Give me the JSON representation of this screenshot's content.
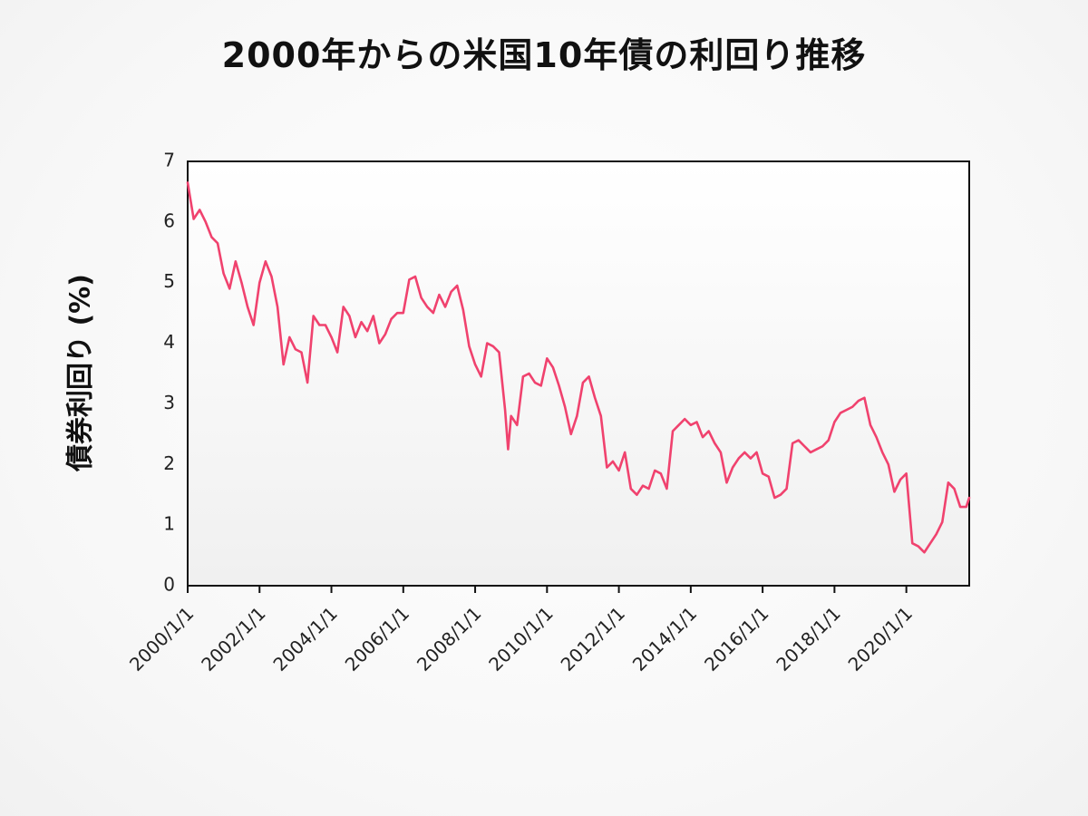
{
  "chart_data": {
    "type": "line",
    "title": "2000年からの米国10年債の利回り推移",
    "xlabel": "",
    "ylabel": "債券利回り (%)",
    "xlim": [
      "2000/1/1",
      "2021/10/1"
    ],
    "ylim": [
      0,
      7
    ],
    "yticks": [
      "0",
      "1",
      "2",
      "3",
      "4",
      "5",
      "6",
      "7"
    ],
    "xticks": [
      {
        "label": "2000/1/1",
        "date": "2000/1/1"
      },
      {
        "label": "2002/1/1",
        "date": "2002/1/1"
      },
      {
        "label": "2004/1/1",
        "date": "2004/1/1"
      },
      {
        "label": "2006/1/1",
        "date": "2006/1/1"
      },
      {
        "label": "2008/1/1",
        "date": "2008/1/1"
      },
      {
        "label": "2010/1/1",
        "date": "2010/1/1"
      },
      {
        "label": "2012/1/1",
        "date": "2012/1/1"
      },
      {
        "label": "2014/1/1",
        "date": "2014/1/1"
      },
      {
        "label": "2016/1/1",
        "date": "2016/1/1"
      },
      {
        "label": "2018/1/1",
        "date": "2018/1/1"
      },
      {
        "label": "2020/1/1",
        "date": "2020/1/1"
      }
    ],
    "grid": false,
    "line_color": "#f0426e",
    "series": [
      {
        "x": [
          "2000/1",
          "2000/3",
          "2000/5",
          "2000/7",
          "2000/9",
          "2000/11",
          "2001/1",
          "2001/3",
          "2001/5",
          "2001/7",
          "2001/9",
          "2001/11",
          "2002/1",
          "2002/3",
          "2002/5",
          "2002/7",
          "2002/9",
          "2002/11",
          "2003/1",
          "2003/3",
          "2003/5",
          "2003/7",
          "2003/9",
          "2003/11",
          "2004/1",
          "2004/3",
          "2004/5",
          "2004/7",
          "2004/9",
          "2004/11",
          "2005/1",
          "2005/3",
          "2005/5",
          "2005/7",
          "2005/9",
          "2005/11",
          "2006/1",
          "2006/3",
          "2006/5",
          "2006/7",
          "2006/9",
          "2006/11",
          "2007/1",
          "2007/3",
          "2007/5",
          "2007/7",
          "2007/9",
          "2007/11",
          "2008/1",
          "2008/3",
          "2008/5",
          "2008/7",
          "2008/9",
          "2008/11",
          "2008/12",
          "2009/1",
          "2009/3",
          "2009/5",
          "2009/7",
          "2009/9",
          "2009/11",
          "2010/1",
          "2010/3",
          "2010/5",
          "2010/7",
          "2010/9",
          "2010/11",
          "2011/1",
          "2011/3",
          "2011/5",
          "2011/7",
          "2011/9",
          "2011/11",
          "2012/1",
          "2012/3",
          "2012/5",
          "2012/7",
          "2012/9",
          "2012/11",
          "2013/1",
          "2013/3",
          "2013/5",
          "2013/7",
          "2013/9",
          "2013/11",
          "2014/1",
          "2014/3",
          "2014/5",
          "2014/7",
          "2014/9",
          "2014/11",
          "2015/1",
          "2015/3",
          "2015/5",
          "2015/7",
          "2015/9",
          "2015/11",
          "2016/1",
          "2016/3",
          "2016/5",
          "2016/7",
          "2016/9",
          "2016/11",
          "2017/1",
          "2017/3",
          "2017/5",
          "2017/7",
          "2017/9",
          "2017/11",
          "2018/1",
          "2018/3",
          "2018/5",
          "2018/7",
          "2018/9",
          "2018/11",
          "2019/1",
          "2019/3",
          "2019/5",
          "2019/7",
          "2019/9",
          "2019/11",
          "2020/1",
          "2020/3",
          "2020/5",
          "2020/7",
          "2020/9",
          "2020/11",
          "2021/1",
          "2021/3",
          "2021/5",
          "2021/7",
          "2021/9",
          "2021/10"
        ],
        "values": [
          6.65,
          6.05,
          6.2,
          6.0,
          5.75,
          5.65,
          5.15,
          4.9,
          5.35,
          5.0,
          4.6,
          4.3,
          5.0,
          5.35,
          5.1,
          4.6,
          3.65,
          4.1,
          3.9,
          3.85,
          3.35,
          4.45,
          4.3,
          4.3,
          4.1,
          3.85,
          4.6,
          4.45,
          4.1,
          4.35,
          4.2,
          4.45,
          4.0,
          4.15,
          4.4,
          4.5,
          4.5,
          5.05,
          5.1,
          4.75,
          4.6,
          4.5,
          4.8,
          4.6,
          4.85,
          4.95,
          4.55,
          3.95,
          3.65,
          3.45,
          4.0,
          3.95,
          3.85,
          2.9,
          2.25,
          2.8,
          2.65,
          3.45,
          3.5,
          3.35,
          3.3,
          3.75,
          3.6,
          3.3,
          2.95,
          2.5,
          2.8,
          3.35,
          3.45,
          3.1,
          2.8,
          1.95,
          2.05,
          1.9,
          2.2,
          1.6,
          1.5,
          1.65,
          1.6,
          1.9,
          1.85,
          1.6,
          2.55,
          2.65,
          2.75,
          2.65,
          2.7,
          2.45,
          2.55,
          2.35,
          2.2,
          1.7,
          1.95,
          2.1,
          2.2,
          2.1,
          2.2,
          1.85,
          1.8,
          1.45,
          1.5,
          1.6,
          2.35,
          2.4,
          2.3,
          2.2,
          2.25,
          2.3,
          2.4,
          2.7,
          2.85,
          2.9,
          2.95,
          3.05,
          3.1,
          2.65,
          2.45,
          2.2,
          2.0,
          1.55,
          1.75,
          1.85,
          0.7,
          0.65,
          0.55,
          0.7,
          0.85,
          1.05,
          1.7,
          1.6,
          1.3,
          1.3,
          1.45
        ]
      }
    ]
  }
}
